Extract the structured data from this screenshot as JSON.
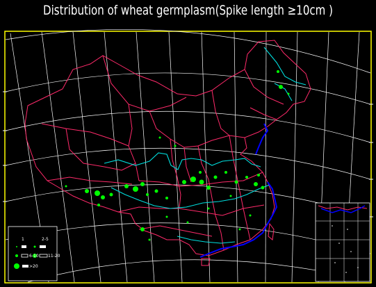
{
  "title": "Distribution of wheat germplasm(Spike length ≥10cm )",
  "colors": {
    "background": "#000000",
    "frame": "#ffff00",
    "graticule": "#ffffff",
    "province_border": "#ff2a6a",
    "river_yellow": "#00e0e0",
    "river_yangtze": "#00e0e0",
    "coastline": "#0000ff",
    "site_marker": "#00ff00"
  },
  "legend": {
    "items": [
      {
        "label": "1",
        "symbol": "small-dot"
      },
      {
        "label": "2-5",
        "symbol": "small-diamond"
      },
      {
        "label": "6-10",
        "symbol": "medium-diamond"
      },
      {
        "label": "11-20",
        "symbol": "large-diamond"
      },
      {
        "label": ">20",
        "symbol": "largest-dot"
      }
    ]
  },
  "inset": {
    "name": "South China Sea islands inset"
  }
}
